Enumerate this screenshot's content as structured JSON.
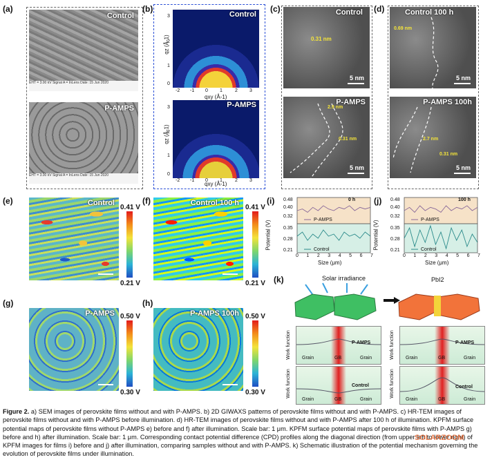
{
  "panels": {
    "a": {
      "label": "(a)",
      "top_title": "Control",
      "bottom_title": "P-AMPS",
      "sem_footer_top": "EHT = 3.00 kV   Signal A = InLens   Date :15 Jun 2020",
      "sem_footer_bottom": "EHT = 3.00 kV   Signal A = InLens   Date :15 Jun 2020"
    },
    "b": {
      "label": "(b)",
      "top_title": "Control",
      "bottom_title": "P-AMPS",
      "y_axis": "qz (Å-1)",
      "x_axis": "qxy (Å-1)",
      "y_ticks": [
        "3",
        "2",
        "1",
        "0"
      ],
      "x_ticks": [
        "-2",
        "-1",
        "0",
        "1",
        "2",
        "3"
      ]
    },
    "c": {
      "label": "(c)",
      "top_title": "Control",
      "bottom_title": "P-AMPS",
      "top_spacing": "0.31 nm",
      "bottom_spacing_1": "2.9 nm",
      "bottom_spacing_2": "0.31 nm",
      "scale": "5 nm"
    },
    "d": {
      "label": "(d)",
      "top_title": "Control 100 h",
      "bottom_title": "P-AMPS 100h",
      "top_spacing": "0.69 nm",
      "bottom_spacing_1": "2.7 nm",
      "bottom_spacing_2": "0.31 nm",
      "scale": "5 nm"
    },
    "e": {
      "label": "(e)",
      "title": "Control",
      "cb_top": "0.41 V",
      "cb_bottom": "0.21 V"
    },
    "f": {
      "label": "(f)",
      "title": "Control  100 h",
      "cb_top": "0.41 V",
      "cb_bottom": "0.21 V"
    },
    "g": {
      "label": "(g)",
      "title": "P-AMPS",
      "cb_top": "0.50 V",
      "cb_bottom": "0.30 V"
    },
    "h": {
      "label": "(h)",
      "title": "P-AMPS 100h",
      "cb_top": "0.50 V",
      "cb_bottom": "0.30 V"
    },
    "i": {
      "label": "(i)",
      "time": "0 h",
      "ylabel": "Potential (V)",
      "xlabel": "Size (μm)",
      "y_ticks_top": [
        "0.48",
        "0.40",
        "0.32"
      ],
      "y_ticks_bottom": [
        "0.35",
        "0.28",
        "0.21"
      ],
      "x_ticks": [
        "0",
        "1",
        "2",
        "3",
        "4",
        "5",
        "6",
        "7"
      ],
      "legend_top": "P-AMPS",
      "legend_bottom": "Control"
    },
    "j": {
      "label": "(j)",
      "time": "100 h",
      "ylabel": "Potential (V)",
      "xlabel": "Size (μm)",
      "y_ticks_top": [
        "0.48",
        "0.40",
        "0.32"
      ],
      "y_ticks_bottom": [
        "0.35",
        "0.28",
        "0.21"
      ],
      "x_ticks": [
        "0",
        "1",
        "2",
        "3",
        "4",
        "5",
        "6",
        "7"
      ],
      "legend_top": "P-AMPS",
      "legend_bottom": "Control"
    },
    "k": {
      "label": "(k)",
      "irradiance": "Solar irradiance",
      "pbi2": "PbI2",
      "wf_label": "Work function",
      "grain": "Grain",
      "gb": "GB",
      "curve_top": "P-AMPS",
      "curve_bottom": "Control"
    }
  },
  "chart_data": [
    {
      "type": "line",
      "panel": "i",
      "title": "0 h",
      "xlabel": "Size (μm)",
      "ylabel": "Potential (V)",
      "x": [
        0,
        0.5,
        1,
        1.5,
        2,
        2.5,
        3,
        3.5,
        4,
        4.5,
        5,
        5.5,
        6,
        6.5,
        7
      ],
      "series": [
        {
          "name": "P-AMPS",
          "ylim": [
            0.32,
            0.48
          ],
          "values": [
            0.4,
            0.41,
            0.39,
            0.42,
            0.4,
            0.43,
            0.41,
            0.4,
            0.42,
            0.41,
            0.43,
            0.4,
            0.42,
            0.41,
            0.42
          ]
        },
        {
          "name": "Control",
          "ylim": [
            0.21,
            0.35
          ],
          "values": [
            0.29,
            0.31,
            0.27,
            0.3,
            0.28,
            0.32,
            0.29,
            0.3,
            0.27,
            0.31,
            0.29,
            0.3,
            0.28,
            0.31,
            0.29
          ]
        }
      ]
    },
    {
      "type": "line",
      "panel": "j",
      "title": "100 h",
      "xlabel": "Size (μm)",
      "ylabel": "Potential (V)",
      "x": [
        0,
        0.5,
        1,
        1.5,
        2,
        2.5,
        3,
        3.5,
        4,
        4.5,
        5,
        5.5,
        6,
        6.5,
        7
      ],
      "series": [
        {
          "name": "P-AMPS",
          "ylim": [
            0.32,
            0.48
          ],
          "values": [
            0.4,
            0.42,
            0.39,
            0.43,
            0.4,
            0.42,
            0.41,
            0.39,
            0.43,
            0.4,
            0.42,
            0.41,
            0.43,
            0.4,
            0.42
          ]
        },
        {
          "name": "Control",
          "ylim": [
            0.21,
            0.35
          ],
          "values": [
            0.28,
            0.33,
            0.24,
            0.32,
            0.26,
            0.34,
            0.25,
            0.31,
            0.23,
            0.33,
            0.27,
            0.32,
            0.24,
            0.3,
            0.26
          ]
        }
      ]
    }
  ],
  "caption": {
    "lead": "Figure 2.",
    "text": " a) SEM images of perovskite films without and with P-AMPS. b) 2D GIWAXS patterns of perovskite films without and with P-AMPS. c) HR-TEM images of perovskite films without and with P-AMPS before illumination. d) HR-TEM images of perovskite films without and with P-AMPS after 100 h of illumination. KPFM surface potential maps of perovskite films without P-AMPS e) before and f) after illumination. Scale bar: 1 μm. KPFM surface potential maps of perovskite films with P-AMPS g) before and h) after illumination. Scale bar: 1 μm. Corresponding contact potential difference (CPD) profiles along the diagonal direction (from upper left to lower right) of KPFM images for films i) before and j) after illumination, comparing samples without and with P-AMPS. k) Schematic illustration of the potential mechanism governing the evolution of perovskite films under illumination."
  },
  "watermark": "SOLARZOOM"
}
